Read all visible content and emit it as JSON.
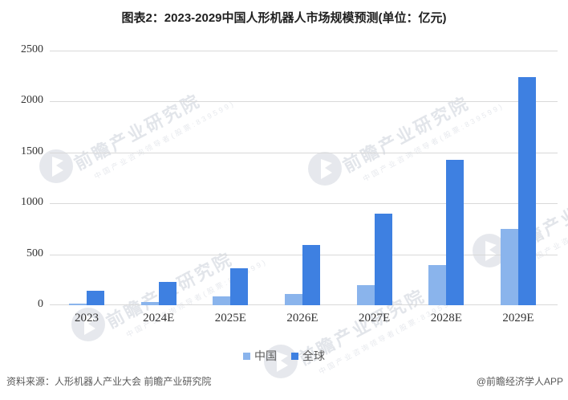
{
  "title": "图表2：2023-2029中国人形机器人市场规模预测(单位：亿元)",
  "chart_data": {
    "type": "bar",
    "categories": [
      "2023",
      "2024E",
      "2025E",
      "2026E",
      "2027E",
      "2028E",
      "2029E"
    ],
    "series": [
      {
        "name": "中国",
        "color": "#8AB4EC",
        "values": [
          18,
          28,
          85,
          110,
          200,
          395,
          750
        ]
      },
      {
        "name": "全球",
        "color": "#3E80E1",
        "values": [
          145,
          230,
          365,
          590,
          900,
          1430,
          2240
        ]
      }
    ],
    "title": "图表2：2023-2029中国人形机器人市场规模预测(单位：亿元)",
    "xlabel": "",
    "ylabel": "",
    "ylim": [
      0,
      2500
    ],
    "yticks": [
      0,
      500,
      1000,
      1500,
      2000,
      2500
    ],
    "grid": true,
    "legend_position": "bottom",
    "gridline_color": "#d9d9d9"
  },
  "watermark": {
    "logo": "qianzhan-bird-logo",
    "text": "前瞻产业研究院",
    "subtext": "中国产业咨询领导者(股票:839599)"
  },
  "footer": {
    "source": "资料来源：人形机器人产业大会 前瞻产业研究院",
    "credit": "@前瞻经济学人APP"
  }
}
